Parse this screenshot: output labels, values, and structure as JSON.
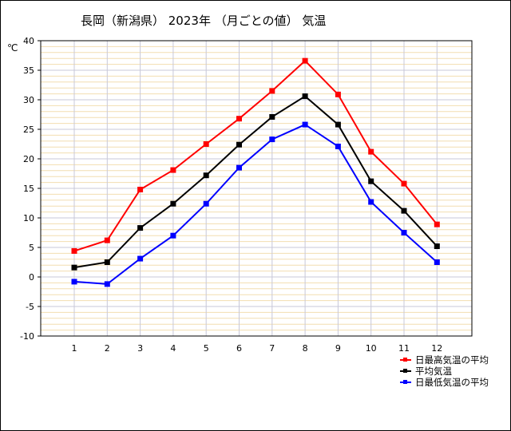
{
  "chart_data": {
    "type": "line",
    "title": "長岡（新潟県） 2023年 （月ごとの値） 気温",
    "ylabel": "℃",
    "xlabel": "",
    "categories": [
      "1",
      "2",
      "3",
      "4",
      "5",
      "6",
      "7",
      "8",
      "9",
      "10",
      "11",
      "12"
    ],
    "ylim": [
      -10,
      40
    ],
    "yticks": [
      40,
      35,
      30,
      25,
      20,
      15,
      10,
      5,
      0,
      -5,
      -10
    ],
    "grid": true,
    "legend_position": "bottom-right",
    "series": [
      {
        "name": "日最高気温の平均",
        "color": "#ff0000",
        "values": [
          4.4,
          6.2,
          14.8,
          18.1,
          22.5,
          26.8,
          31.5,
          36.6,
          30.9,
          21.2,
          15.8,
          8.9
        ]
      },
      {
        "name": "平均気温",
        "color": "#000000",
        "values": [
          1.6,
          2.5,
          8.3,
          12.4,
          17.2,
          22.4,
          27.1,
          30.6,
          25.8,
          16.2,
          11.2,
          5.2
        ]
      },
      {
        "name": "日最低気温の平均",
        "color": "#0000ff",
        "values": [
          -0.8,
          -1.2,
          3.1,
          7.0,
          12.4,
          18.5,
          23.3,
          25.8,
          22.1,
          12.7,
          7.5,
          2.5
        ]
      }
    ]
  }
}
